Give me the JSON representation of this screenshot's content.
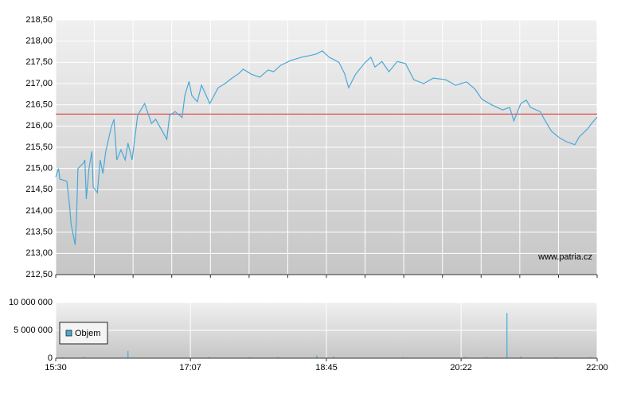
{
  "chart_data": [
    {
      "type": "line",
      "color": "#4aa8d8",
      "reference_line": 216.28,
      "reference_color": "#e05050",
      "watermark": "www.patria.cz",
      "xlim": [
        "15:30",
        "22:00"
      ],
      "ylim": [
        212.5,
        218.5
      ],
      "yticks": [
        {
          "value": 212.5,
          "label": "212,50"
        },
        {
          "value": 213,
          "label": "213,00"
        },
        {
          "value": 213.5,
          "label": "213,50"
        },
        {
          "value": 214,
          "label": "214,00"
        },
        {
          "value": 214.5,
          "label": "214,50"
        },
        {
          "value": 215,
          "label": "215,00"
        },
        {
          "value": 215.5,
          "label": "215,50"
        },
        {
          "value": 216,
          "label": "216,00"
        },
        {
          "value": 216.5,
          "label": "216,50"
        },
        {
          "value": 217,
          "label": "217,00"
        },
        {
          "value": 217.5,
          "label": "217,50"
        },
        {
          "value": 218,
          "label": "218,00"
        },
        {
          "value": 218.5,
          "label": "218,50"
        }
      ],
      "grid": true,
      "x": [
        "15:30",
        "15:32",
        "15:33",
        "15:38",
        "15:40",
        "15:41",
        "15:44",
        "15:45",
        "15:46",
        "15:50",
        "15:51",
        "15:52",
        "15:54",
        "15:56",
        "15:57",
        "16:00",
        "16:02",
        "16:04",
        "16:06",
        "16:10",
        "16:12",
        "16:14",
        "16:17",
        "16:20",
        "16:22",
        "16:25",
        "16:29",
        "16:34",
        "16:37",
        "16:39",
        "16:42",
        "16:50",
        "16:52",
        "16:56",
        "17:01",
        "17:03",
        "17:06",
        "17:08",
        "17:12",
        "17:15",
        "17:21",
        "17:27",
        "17:32",
        "17:37",
        "17:42",
        "17:45",
        "17:51",
        "17:57",
        "18:03",
        "18:07",
        "18:12",
        "18:19",
        "18:27",
        "18:33",
        "18:38",
        "18:42",
        "18:47",
        "18:54",
        "18:58",
        "19:01",
        "19:06",
        "19:13",
        "19:17",
        "19:20",
        "19:25",
        "19:30",
        "19:36",
        "19:42",
        "19:48",
        "19:55",
        "20:02",
        "20:11",
        "20:18",
        "20:26",
        "20:32",
        "20:37",
        "20:44",
        "20:52",
        "20:57",
        "21:00",
        "21:05",
        "21:09",
        "21:12",
        "21:19",
        "21:22",
        "21:27",
        "21:33",
        "21:38",
        "21:44",
        "21:47",
        "21:53",
        "21:57",
        "22:00"
      ],
      "values": [
        214.8,
        215.0,
        214.75,
        214.7,
        214.13,
        213.7,
        213.2,
        213.9,
        215.0,
        215.13,
        215.2,
        214.28,
        215.0,
        215.4,
        214.56,
        214.43,
        215.2,
        214.88,
        215.4,
        215.97,
        216.16,
        215.2,
        215.44,
        215.2,
        215.6,
        215.2,
        216.25,
        216.53,
        216.25,
        216.06,
        216.16,
        215.69,
        216.25,
        216.34,
        216.2,
        216.72,
        217.05,
        216.72,
        216.57,
        216.96,
        216.53,
        216.9,
        217.0,
        217.13,
        217.24,
        217.34,
        217.22,
        217.15,
        217.32,
        217.28,
        217.43,
        217.54,
        217.62,
        217.66,
        217.7,
        217.77,
        217.62,
        217.5,
        217.24,
        216.9,
        217.22,
        217.5,
        217.62,
        217.39,
        217.52,
        217.28,
        217.52,
        217.47,
        217.09,
        217.0,
        217.13,
        217.09,
        216.96,
        217.04,
        216.87,
        216.63,
        216.5,
        216.38,
        216.44,
        216.12,
        216.53,
        216.61,
        216.44,
        216.34,
        216.16,
        215.88,
        215.72,
        215.63,
        215.56,
        215.74,
        215.93,
        216.1,
        216.21
      ]
    },
    {
      "type": "bar",
      "xlim": [
        "15:30",
        "22:00"
      ],
      "xticks": [
        "15:30",
        "17:07",
        "18:45",
        "20:22",
        "22:00"
      ],
      "ylim": [
        0,
        10000000
      ],
      "yticks": [
        0,
        {
          "value": 5000000,
          "label": "5 000 000"
        },
        {
          "value": 10000000,
          "label": "10 000 000"
        }
      ],
      "grid": true,
      "legend": "lower left",
      "x": [
        "15:35",
        "15:50",
        "16:05",
        "16:22",
        "16:45",
        "17:20",
        "17:50",
        "18:10",
        "18:38",
        "18:50",
        "19:40",
        "20:25",
        "20:40",
        "20:55",
        "21:05",
        "21:30",
        "21:55"
      ],
      "series": [
        {
          "name": "Objem",
          "color": "#4aa8d8",
          "values": [
            150000,
            200000,
            120000,
            1300000,
            100000,
            180000,
            150000,
            200000,
            500000,
            300000,
            150000,
            250000,
            200000,
            8100000,
            300000,
            150000,
            200000
          ]
        }
      ]
    }
  ]
}
